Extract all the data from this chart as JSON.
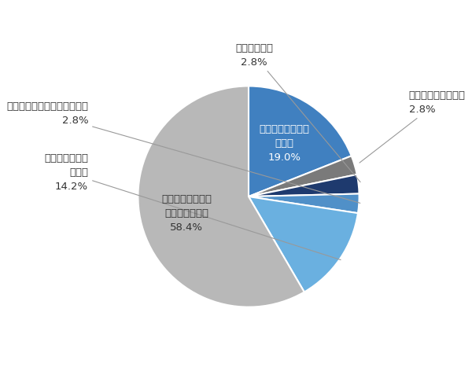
{
  "slices": [
    {
      "label": "縦型全自動洗濤・\n乾燥機\n19.0%",
      "value": 19.0,
      "color": "#4080c0",
      "inside": true,
      "text_color": "white"
    },
    {
      "label": "その他・わからない\n2.8%",
      "value": 2.8,
      "color": "#7a7a7a",
      "inside": false,
      "text_color": "#333333",
      "label_pos": "right_top"
    },
    {
      "label": "二层式洗濤機\n2.8%",
      "value": 2.8,
      "color": "#1e3a6e",
      "inside": false,
      "text_color": "#333333",
      "label_pos": "top_mid"
    },
    {
      "label": "ドラム式洗濤（乾燥機なし）\n2.8%",
      "value": 2.8,
      "color": "#5090c8",
      "inside": false,
      "text_color": "#333333",
      "label_pos": "left_upper"
    },
    {
      "label": "ドラム式洗濤・\n乾燥機\n14.2%",
      "value": 14.2,
      "color": "#6ab0e0",
      "inside": false,
      "text_color": "#333333",
      "label_pos": "left_mid"
    },
    {
      "label": "縦型全自動洗濤機\n（乾燥機なし）\n58.4%",
      "value": 58.4,
      "color": "#b8b8b8",
      "inside": true,
      "text_color": "#333333"
    }
  ],
  "startangle": 90,
  "bg_color": "#ffffff",
  "text_color": "#333333",
  "fontsize": 9.5
}
